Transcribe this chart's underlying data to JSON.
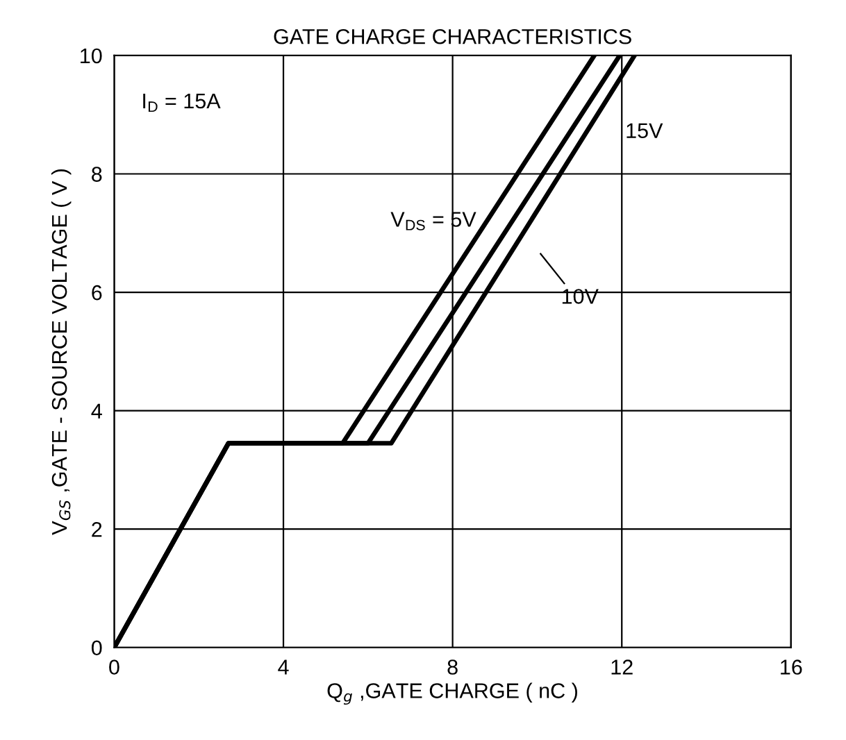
{
  "chart_data": {
    "type": "line",
    "title": "GATE CHARGE CHARACTERISTICS",
    "xlabel": "Q$_{g}$ ,GATE CHARGE ( nC )",
    "ylabel": "V$_{GS}$ ,GATE - SOURCE VOLTAGE ( V )",
    "series": [
      {
        "color": "#000000",
        "x": [
          0,
          2.7,
          5.4,
          11.35
        ],
        "values": [
          0,
          3.45,
          3.45,
          10
        ]
      },
      {
        "color": "#000000",
        "x": [
          0,
          2.7,
          6.0,
          11.95
        ],
        "values": [
          0,
          3.45,
          3.45,
          10
        ]
      },
      {
        "color": "#000000",
        "x": [
          0,
          2.7,
          6.55,
          12.3
        ],
        "values": [
          0,
          3.45,
          3.45,
          10
        ]
      }
    ],
    "annotations": [
      "I$_{D}$ = 15A",
      "V$_{DS}$ = 5V",
      "10V",
      "15V"
    ],
    "xlim": [
      0,
      16
    ],
    "ylim": [
      0,
      10
    ],
    "xticks": [
      0,
      4,
      8,
      12,
      16
    ],
    "yticks": [
      0,
      2,
      4,
      6,
      8,
      10
    ],
    "grid": true,
    "legend": false,
    "line_style": "solid",
    "marker": "none"
  }
}
